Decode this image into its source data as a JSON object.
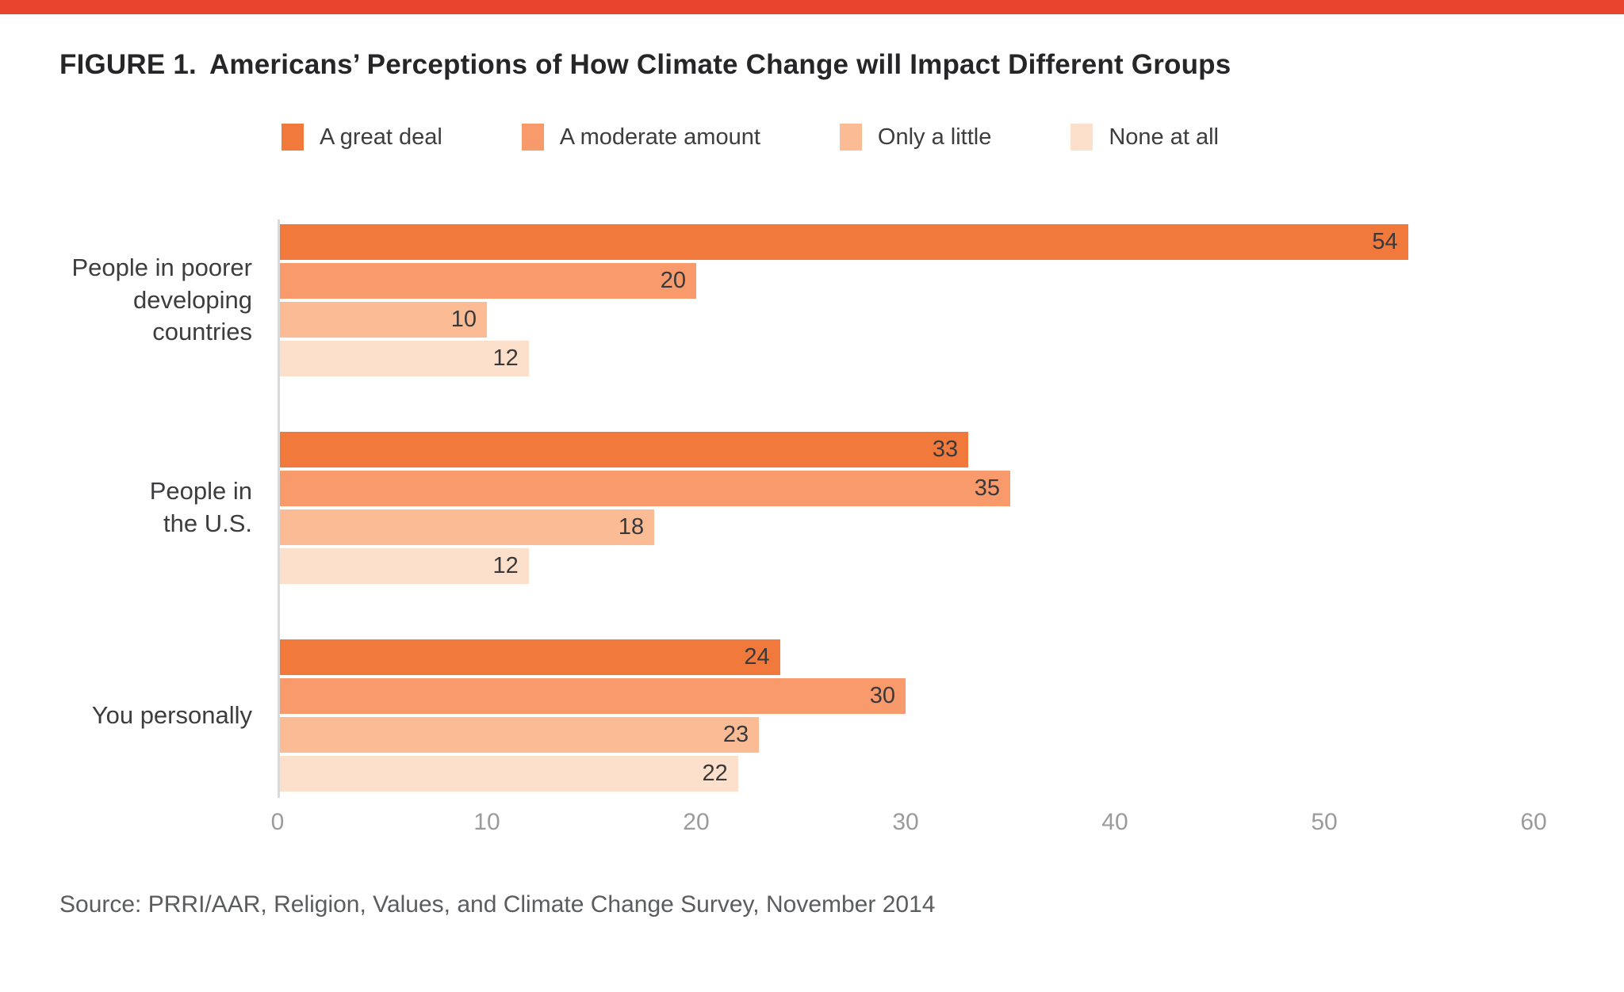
{
  "accent_bar_color": "#e8432d",
  "title": {
    "label": "FIGURE 1.",
    "text": "Americans’ Perceptions of How Climate Change will Impact Different Groups"
  },
  "chart_data": {
    "type": "bar",
    "orientation": "horizontal",
    "title": "Americans’ Perceptions of How Climate Change will Impact Different Groups",
    "categories": [
      "People in poorer\ndeveloping\ncountries",
      "People in\nthe U.S.",
      "You personally"
    ],
    "series": [
      {
        "name": "A great deal",
        "color": "#f2793c",
        "values": [
          54,
          33,
          24
        ]
      },
      {
        "name": "A moderate amount",
        "color": "#f89a6c",
        "values": [
          20,
          35,
          30
        ]
      },
      {
        "name": "Only a little",
        "color": "#fbbc95",
        "values": [
          10,
          18,
          23
        ]
      },
      {
        "name": "None at all",
        "color": "#fde0cb",
        "values": [
          12,
          12,
          22
        ]
      }
    ],
    "xlim": [
      0,
      60
    ],
    "xticks": [
      0,
      10,
      20,
      30,
      40,
      50,
      60
    ],
    "legend_position": "top",
    "grid": false,
    "value_labels": "inside-end",
    "axis_line_color": "#d9d9d9",
    "tick_label_color": "#9b9b9c",
    "category_label_color": "#3d3d3f",
    "value_label_color": "#39393b"
  },
  "source": "Source: PRRI/AAR, Religion, Values, and Climate Change Survey, November 2014"
}
